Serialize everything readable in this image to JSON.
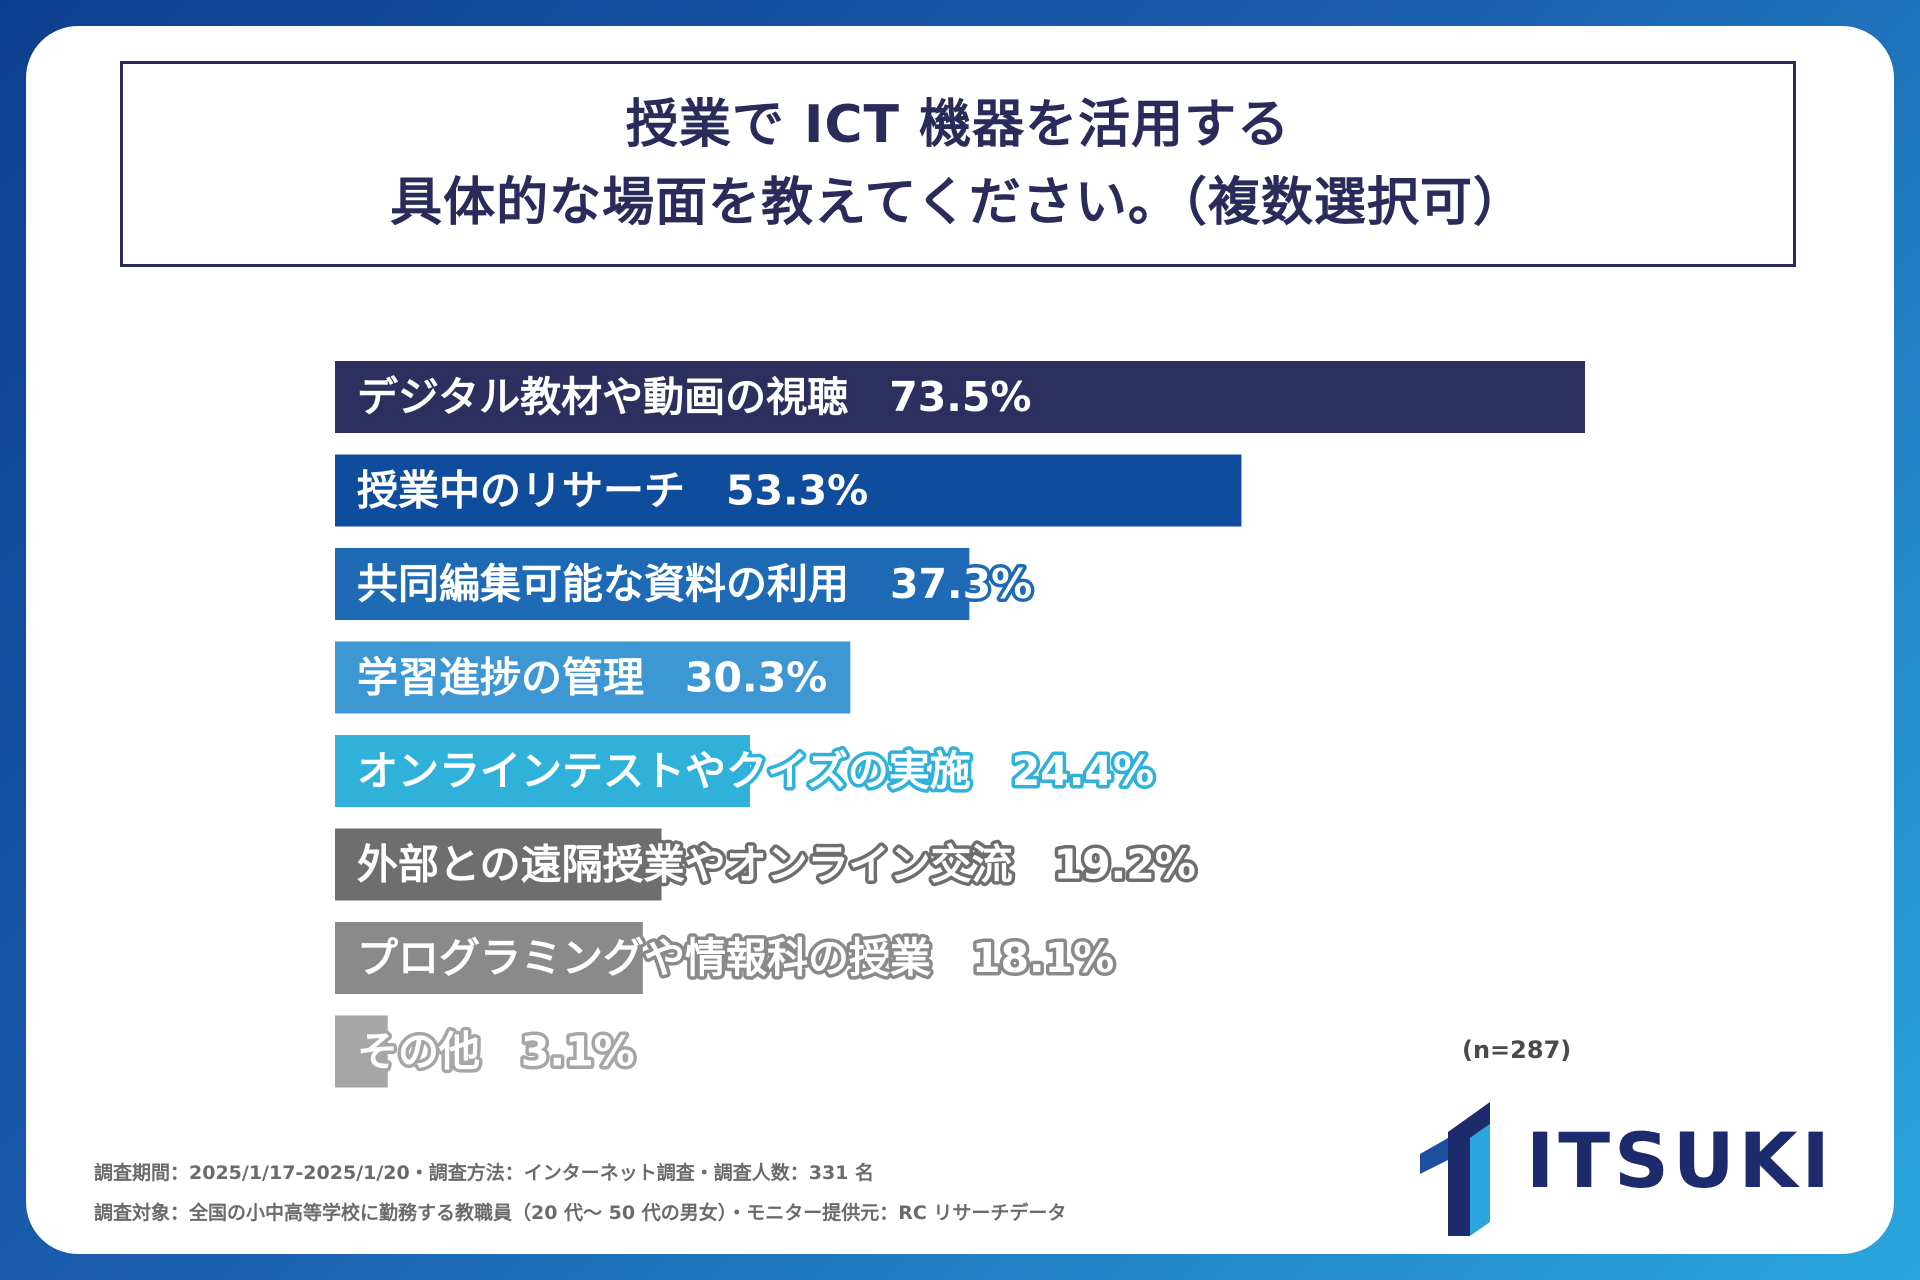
{
  "title": {
    "line1": "授業で ICT 機器を活用する",
    "line2": "具体的な場面を教えてください。（複数選択可）"
  },
  "chart_data": {
    "type": "bar",
    "orientation": "horizontal",
    "categories": [
      "デジタル教材や動画の視聴",
      "授業中のリサーチ",
      "共同編集可能な資料の利用",
      "学習進捗の管理",
      "オンラインテストやクイズの実施",
      "外部との遠隔授業やオンライン交流",
      "プログラミングや情報科の授業",
      "その他"
    ],
    "values": [
      73.5,
      53.3,
      37.3,
      30.3,
      24.4,
      19.2,
      18.1,
      3.1
    ],
    "value_labels": [
      "73.5%",
      "53.3%",
      "37.3%",
      "30.3%",
      "24.4%",
      "19.2%",
      "18.1%",
      "3.1%"
    ],
    "colors": [
      "#2d2f5e",
      "#0f4c9c",
      "#1f6ab4",
      "#3d97d3",
      "#2fb1da",
      "#6e6e6e",
      "#8a8a8a",
      "#a6a6a6"
    ],
    "xlim": [
      0,
      73.5
    ],
    "grid": false,
    "legend": "none"
  },
  "n_label": "(n=287)",
  "footnotes": {
    "line1": "調査期間：2025/1/17-2025/1/20・調査方法：インターネット調査・調査人数：331 名",
    "line2": "調査対象：全国の小中高等学校に勤務する教職員（20 代〜 50 代の男女）・モニター提供元：RC リサーチデータ"
  },
  "logo": {
    "text": "ITSUKI",
    "color": "#1d2a6c",
    "accent": "#2aa6dc"
  }
}
